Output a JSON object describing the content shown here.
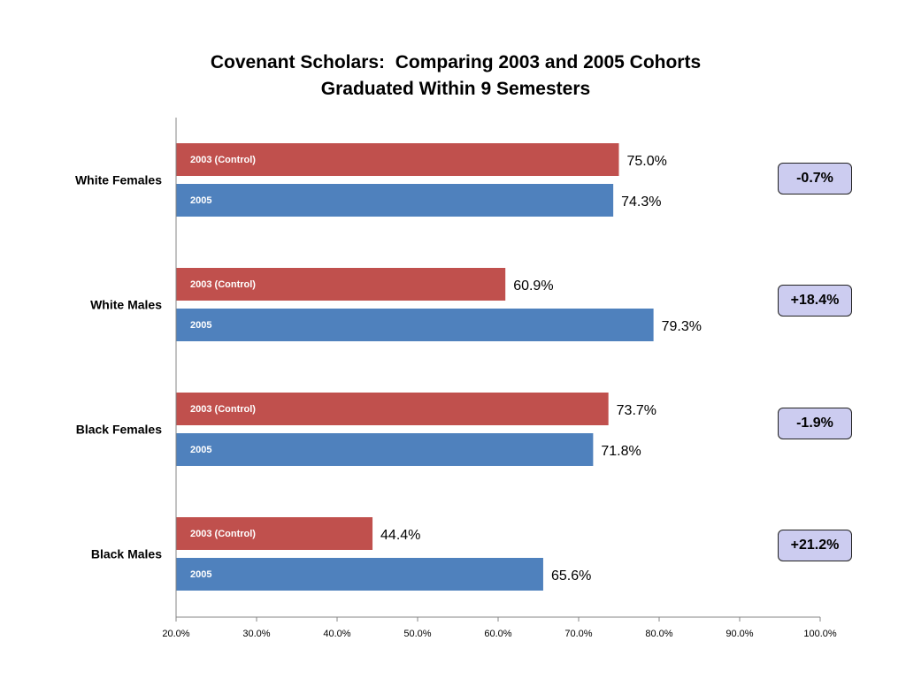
{
  "chart_data": {
    "type": "bar",
    "orientation": "horizontal",
    "title": [
      "Covenant Scholars:  Comparing 2003 and 2005 Cohorts",
      "Graduated Within 9 Semesters"
    ],
    "categories": [
      "White Females",
      "White Males",
      "Black Females",
      "Black Males"
    ],
    "series": [
      {
        "name": "2003 (Control)",
        "color": "#c0504d",
        "values": [
          75.0,
          60.9,
          73.7,
          44.4
        ],
        "labels": [
          "75.0%",
          "60.9%",
          "73.7%",
          "44.4%"
        ]
      },
      {
        "name": "2005",
        "color": "#4f81bd",
        "values": [
          74.3,
          79.3,
          71.8,
          65.6
        ],
        "labels": [
          "74.3%",
          "79.3%",
          "71.8%",
          "65.6%"
        ]
      }
    ],
    "xlim": [
      20,
      100
    ],
    "x_ticks": [
      "20.0%",
      "30.0%",
      "40.0%",
      "50.0%",
      "60.0%",
      "70.0%",
      "80.0%",
      "90.0%",
      "100.0%"
    ],
    "grid": false,
    "annotations": [
      "-0.7%",
      "+18.4%",
      "-1.9%",
      "+21.2%"
    ]
  }
}
